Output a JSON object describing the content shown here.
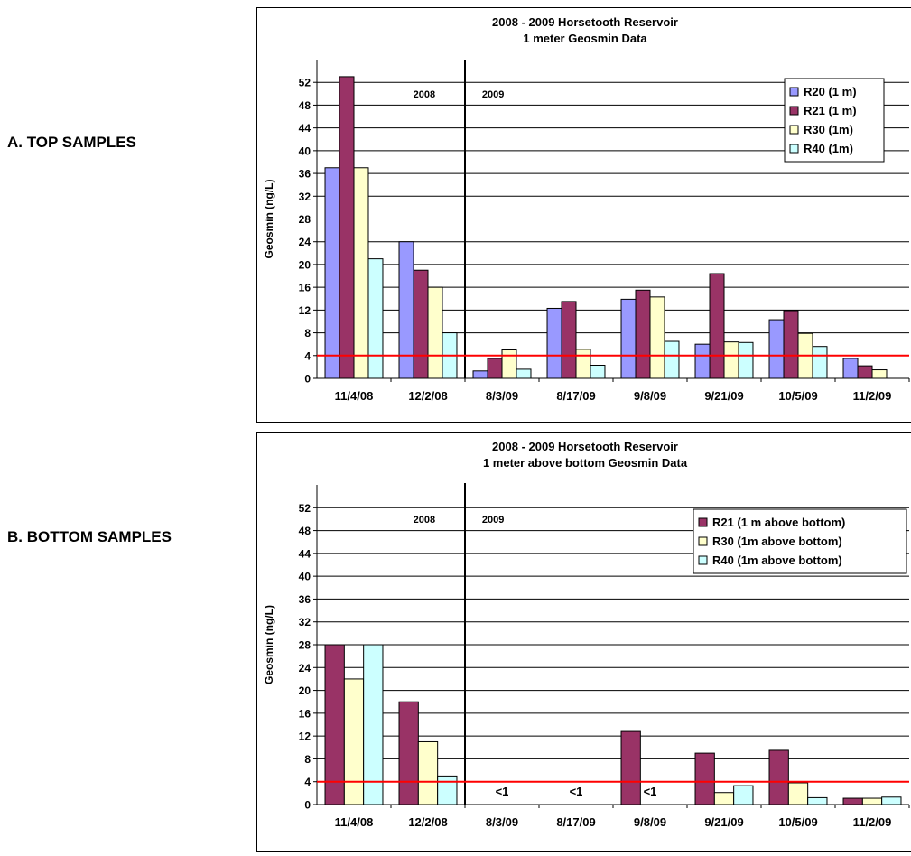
{
  "labels": {
    "top": "A. TOP SAMPLES",
    "bottom": "B. BOTTOM  SAMPLES"
  },
  "colors": {
    "R20": "#9999ff",
    "R21": "#993366",
    "R30": "#ffffcc",
    "R40": "#ccffff",
    "threshold": "#ff0000"
  },
  "chart_data": [
    {
      "type": "bar",
      "title": "2008 - 2009 Horsetooth Reservoir",
      "subtitle": "1 meter Geosmin Data",
      "xlabel": "",
      "ylabel": "Geosmin (ng/L)",
      "ylim": [
        0,
        56
      ],
      "yticks": [
        0,
        4,
        8,
        12,
        16,
        20,
        24,
        28,
        32,
        36,
        40,
        44,
        48,
        52
      ],
      "categories": [
        "11/4/08",
        "12/2/08",
        "8/3/09",
        "8/17/09",
        "9/8/09",
        "9/21/09",
        "10/5/09",
        "11/2/09"
      ],
      "series": [
        {
          "name": "R20 (1 m)",
          "color": "#9999ff",
          "values": [
            37,
            24,
            1.3,
            12.3,
            13.9,
            6,
            10.3,
            3.5
          ]
        },
        {
          "name": "R21 (1 m)",
          "color": "#993366",
          "values": [
            53,
            19,
            3.5,
            13.5,
            15.5,
            18.4,
            11.9,
            2.2
          ]
        },
        {
          "name": "R30 (1m)",
          "color": "#ffffcc",
          "values": [
            37,
            16,
            5,
            5.1,
            14.3,
            6.4,
            7.9,
            1.5
          ]
        },
        {
          "name": "R40 (1m)",
          "color": "#ccffff",
          "values": [
            21,
            8,
            1.6,
            2.3,
            6.5,
            6.3,
            5.6,
            null
          ]
        }
      ],
      "threshold": 4,
      "divider_after_index": 1,
      "year_labels": [
        "2008",
        "2009"
      ],
      "legend": "top-right",
      "grid": true
    },
    {
      "type": "bar",
      "title": "2008 - 2009 Horsetooth Reservoir",
      "subtitle": "1 meter above bottom Geosmin Data",
      "xlabel": "",
      "ylabel": "Geosmin (ng/L)",
      "ylim": [
        0,
        56
      ],
      "yticks": [
        0,
        4,
        8,
        12,
        16,
        20,
        24,
        28,
        32,
        36,
        40,
        44,
        48,
        52
      ],
      "categories": [
        "11/4/08",
        "12/2/08",
        "8/3/09",
        "8/17/09",
        "9/8/09",
        "9/21/09",
        "10/5/09",
        "11/2/09"
      ],
      "series": [
        {
          "name": "R21 (1 m above bottom)",
          "color": "#993366",
          "values": [
            28,
            18,
            null,
            null,
            12.8,
            9,
            9.5,
            1.1
          ]
        },
        {
          "name": "R30 (1m above bottom)",
          "color": "#ffffcc",
          "values": [
            22,
            11,
            null,
            null,
            null,
            2.1,
            3.8,
            1.1
          ]
        },
        {
          "name": "R40 (1m above bottom)",
          "color": "#ccffff",
          "values": [
            28,
            5,
            null,
            null,
            null,
            3.3,
            1.2,
            1.3
          ]
        }
      ],
      "annotations": [
        {
          "category_index": 2,
          "text": "<1"
        },
        {
          "category_index": 3,
          "text": "<1"
        },
        {
          "category_index": 4,
          "text": "<1"
        }
      ],
      "threshold": 4,
      "divider_after_index": 1,
      "year_labels": [
        "2008",
        "2009"
      ],
      "legend": "top-right",
      "grid": true
    }
  ]
}
